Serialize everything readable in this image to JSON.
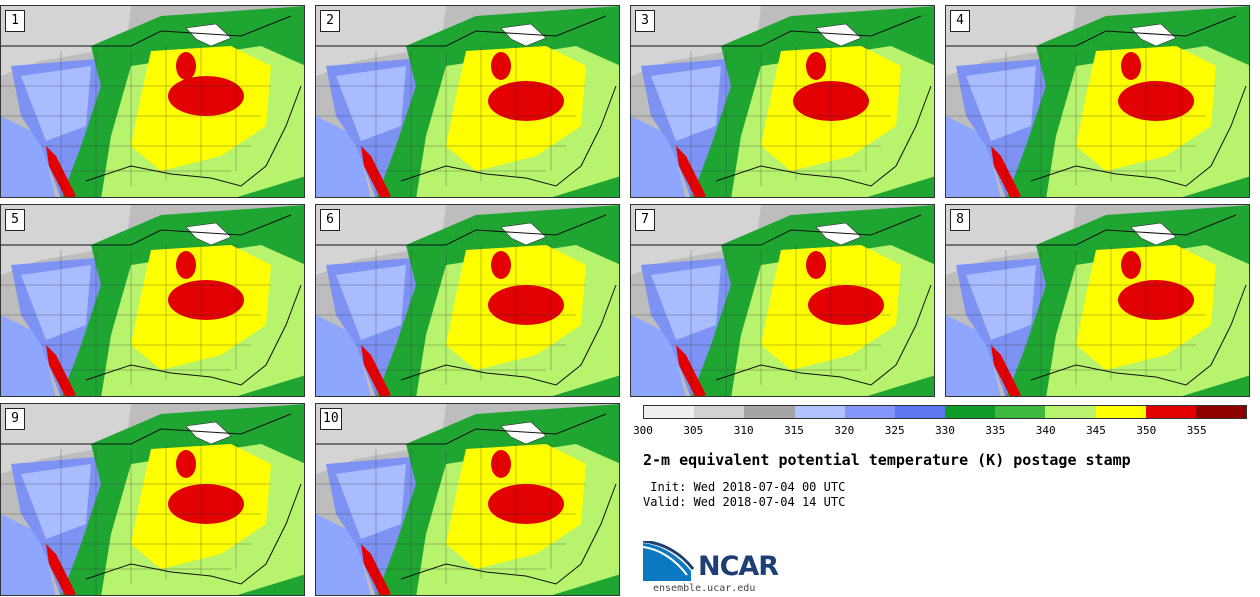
{
  "panels": [
    {
      "label": "1",
      "blob": [
        205,
        90
      ]
    },
    {
      "label": "2",
      "blob": [
        210,
        95
      ]
    },
    {
      "label": "3",
      "blob": [
        200,
        95
      ]
    },
    {
      "label": "4",
      "blob": [
        210,
        95
      ]
    },
    {
      "label": "5",
      "blob": [
        205,
        95
      ]
    },
    {
      "label": "6",
      "blob": [
        210,
        100
      ]
    },
    {
      "label": "7",
      "blob": [
        215,
        100
      ]
    },
    {
      "label": "8",
      "blob": [
        210,
        95
      ]
    },
    {
      "label": "9",
      "blob": [
        205,
        100
      ]
    },
    {
      "label": "10",
      "blob": [
        210,
        100
      ]
    }
  ],
  "colorbar": {
    "colors": [
      "#efefef",
      "#d2d2d2",
      "#a5a5a5",
      "#b2c4ff",
      "#8496fb",
      "#5f78f2",
      "#0f9b27",
      "#3fb83f",
      "#b7f36c",
      "#ffff00",
      "#e30000",
      "#8e0000"
    ],
    "ticks": [
      "300",
      "305",
      "310",
      "315",
      "320",
      "325",
      "330",
      "335",
      "340",
      "345",
      "350",
      "355"
    ]
  },
  "title": "2-m equivalent potential temperature (K) postage stamp",
  "init": " Init: Wed 2018-07-04 00 UTC",
  "valid": "Valid: Wed 2018-07-04 14 UTC",
  "logo_text": "NCAR",
  "url": "ensemble.ucar.edu"
}
